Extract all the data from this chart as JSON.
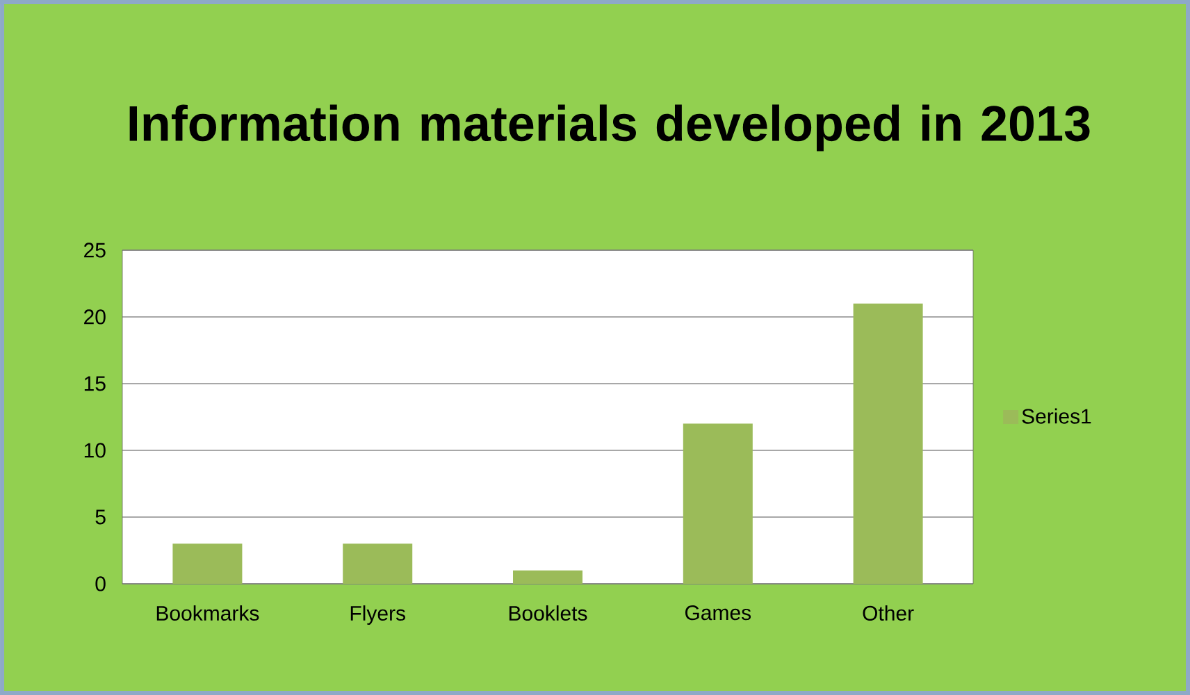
{
  "chart_data": {
    "type": "bar",
    "title": "Information materials developed in 2013",
    "categories": [
      "Bookmarks",
      "Flyers",
      "Booklets",
      "Games",
      "Other"
    ],
    "series": [
      {
        "name": "Series1",
        "color": "#9bbb59",
        "values": [
          3,
          3,
          1,
          12,
          21
        ]
      }
    ],
    "ylim": [
      0,
      25
    ],
    "yticks": [
      0,
      5,
      10,
      15,
      20,
      25
    ],
    "grid": "y",
    "legend": "right"
  }
}
